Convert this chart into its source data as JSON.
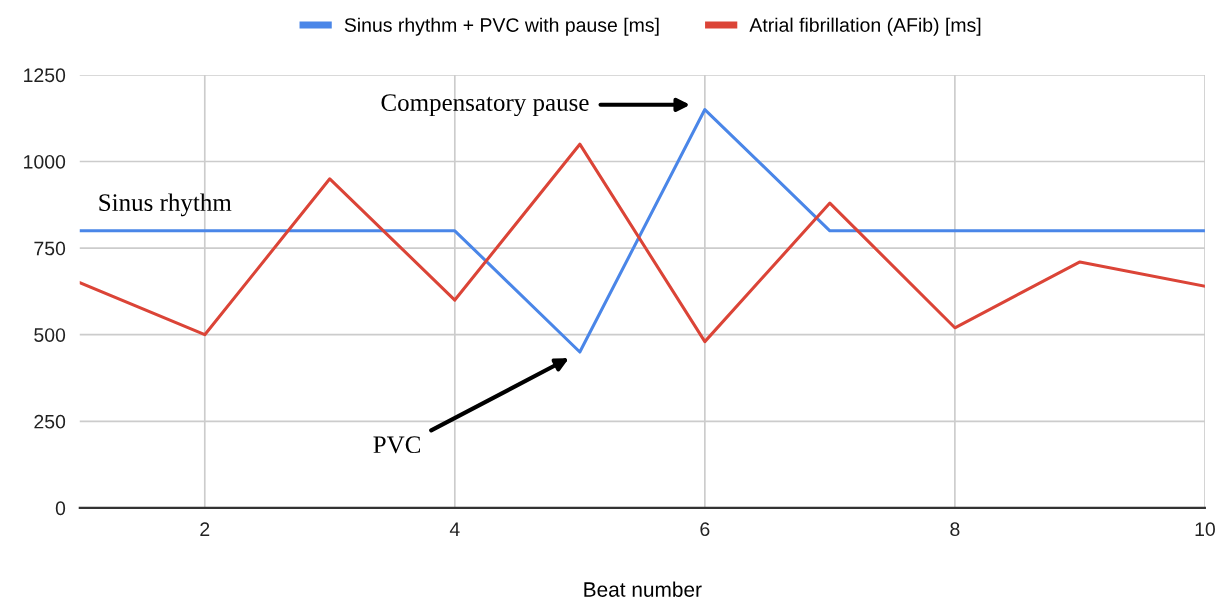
{
  "chart_data": {
    "type": "line",
    "xlabel": "Beat number",
    "x": [
      1,
      2,
      3,
      4,
      5,
      6,
      7,
      8,
      9,
      10
    ],
    "series": [
      {
        "name": "Sinus rhythm + PVC with pause [ms]",
        "color": "#4a86e8",
        "values": [
          800,
          800,
          800,
          800,
          450,
          1150,
          800,
          800,
          800,
          800
        ]
      },
      {
        "name": "Atrial fibrillation (AFib) [ms]",
        "color": "#db4437",
        "values": [
          650,
          500,
          950,
          600,
          1050,
          480,
          880,
          520,
          710,
          640
        ]
      }
    ],
    "xlim": [
      1,
      10
    ],
    "xticks": [
      2,
      4,
      6,
      8,
      10
    ],
    "ylim": [
      0,
      1250
    ],
    "yticks": [
      0,
      250,
      500,
      750,
      1000,
      1250
    ],
    "grid": true,
    "legend": "top",
    "marker": "none",
    "line_style": "solid",
    "annotations": [
      "Sinus rhythm",
      "Compensatory pause",
      "PVC"
    ]
  }
}
